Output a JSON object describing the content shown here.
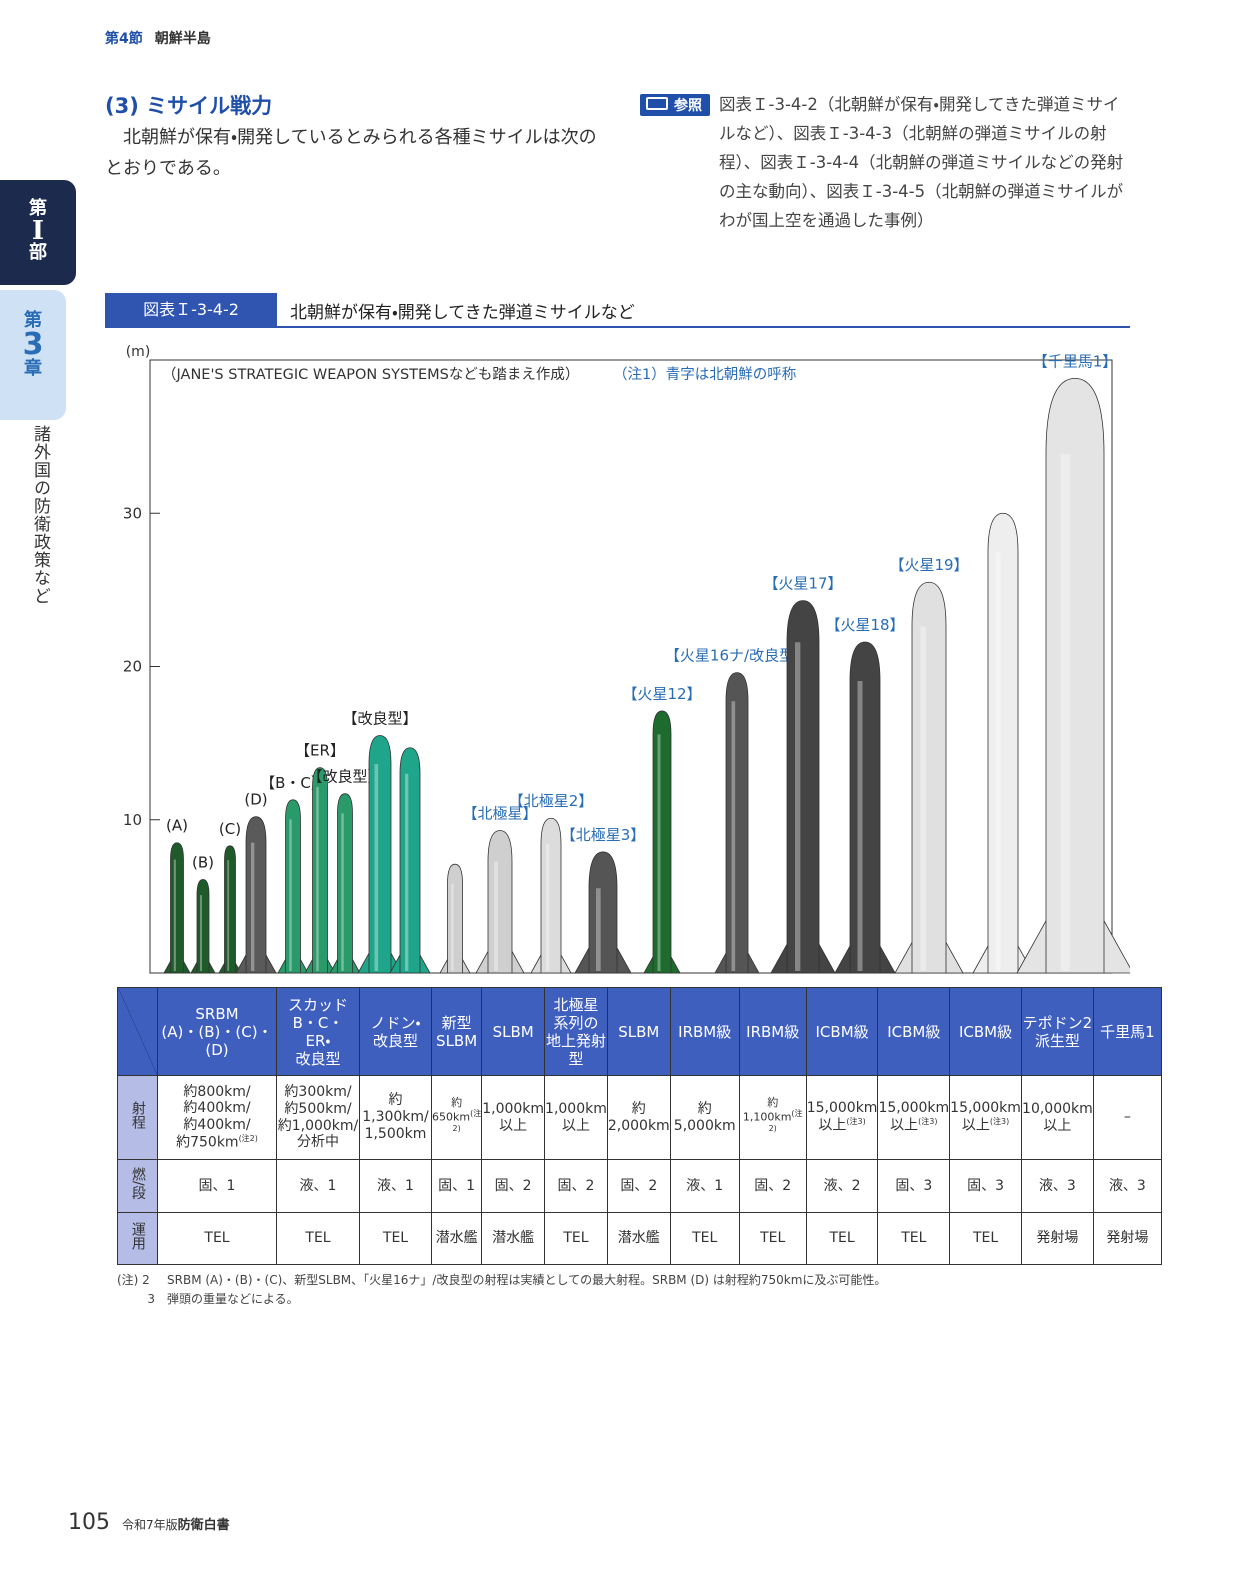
{
  "header": {
    "section": "第4節",
    "title": "朝鮮半島"
  },
  "sidebar": {
    "part": [
      "第",
      "I",
      "部"
    ],
    "chapter": [
      "第",
      "3",
      "章"
    ],
    "chapter_title": "諸外国の防衛政策など"
  },
  "section": {
    "title": "(3) ミサイル戦力",
    "body": "北朝鮮が保有・開発しているとみられる各種ミサイルは次のとおりである。"
  },
  "reference": {
    "label": "参照",
    "text": "図表Ｉ-3-4-2（北朝鮮が保有・開発してきた弾道ミサイルなど）、図表Ｉ-3-4-3（北朝鮮の弾道ミサイルの射程）、図表Ｉ-3-4-4（北朝鮮の弾道ミサイルなどの発射の主な動向）、図表Ｉ-3-4-5（北朝鮮の弾道ミサイルがわが国上空を通過した事例）"
  },
  "figure": {
    "number": "図表Ｉ-3-4-2",
    "title": "北朝鮮が保有・開発してきた弾道ミサイルなど"
  },
  "chart_data": {
    "type": "bar",
    "y_label": "(m)",
    "notes": [
      "（JANE'S STRATEGIC WEAPON SYSTEMSなども踏まえ作成）",
      "（注1）青字は北朝鮮の呼称"
    ],
    "categories": [
      "(A)",
      "(B)",
      "(C)",
      "(D)",
      "【B・C】",
      "【ER】",
      "【改良型】",
      "【改良型】",
      null,
      null,
      "【北極星】",
      "【北極星2】",
      "【北極星3】",
      "【火星12】",
      "【火星16ナ/改良型】",
      "【火星17】",
      "【火星18】",
      "【火星19】",
      null,
      "【千里馬1】"
    ],
    "label_colors": [
      "#222",
      "#222",
      "#222",
      "#222",
      "#222",
      "#222",
      "#222",
      "#222",
      null,
      null,
      "#2a6db5",
      "#2a6db5",
      "#2a6db5",
      "#2a6db5",
      "#2a6db5",
      "#2a6db5",
      "#2a6db5",
      "#2a6db5",
      null,
      "#2a6db5"
    ],
    "values": [
      8.5,
      6.1,
      8.3,
      10.2,
      11.3,
      13.4,
      11.7,
      15.5,
      14.7,
      7.1,
      9.3,
      10.1,
      7.9,
      17.1,
      19.6,
      24.3,
      21.6,
      25.5,
      30.0,
      38.8
    ],
    "colors": [
      "#1f5a2a",
      "#1f5a2a",
      "#1f5a2a",
      "#5a5a5a",
      "#2a9a6a",
      "#2a9a6a",
      "#2a9a6a",
      "#1fa58a",
      "#1fa58a",
      "#cfcfcf",
      "#cfcfcf",
      "#dcdcdc",
      "#555555",
      "#1e6b2e",
      "#555555",
      "#444444",
      "#444444",
      "#e0e0e0",
      "#eeeeee",
      "#e4e4e4"
    ],
    "ylim": [
      0,
      40
    ],
    "yticks": [
      10,
      20,
      30
    ]
  },
  "table": {
    "columns": [
      "SRBM\n(A)・(B)・(C)・\n(D)",
      "スカッド\nB・C・\nER・\n改良型",
      "ノドン・\n改良型",
      "新型\nSLBM",
      "SLBM",
      "北極星\n系列の\n地上発射型",
      "SLBM",
      "IRBM級",
      "IRBM級",
      "ICBM級",
      "ICBM級",
      "ICBM級",
      "テポドン2\n派生型",
      "千里馬1"
    ],
    "row_headers": [
      "射程",
      "燃/段",
      "運用"
    ],
    "rows": [
      [
        {
          "text": "約800km/\n約400km/\n約400km/\n約750km",
          "note": "(注2)"
        },
        "約300km/\n約500km/\n約1,000km/\n分析中",
        "約\n1,300km/\n1,500km",
        {
          "text": "約650km",
          "note": "(注2)"
        },
        "1,000km\n以上",
        "1,000km\n以上",
        "約2,000km",
        "約5,000km",
        {
          "text": "約1,100km",
          "note": "(注2)"
        },
        {
          "text": "15,000km\n以上",
          "note": "(注3)"
        },
        {
          "text": "15,000km\n以上",
          "note": "(注3)"
        },
        {
          "text": "15,000km\n以上",
          "note": "(注3)"
        },
        "10,000km\n以上",
        "–"
      ],
      [
        "固、1",
        "液、1",
        "液、1",
        "固、1",
        "固、2",
        "固、2",
        "固、2",
        "液、1",
        "固、2",
        "液、2",
        "固、3",
        "固、3",
        "液、3",
        "液、3"
      ],
      [
        "TEL",
        "TEL",
        "TEL",
        "潜水艦",
        "潜水艦",
        "TEL",
        "潜水艦",
        "TEL",
        "TEL",
        "TEL",
        "TEL",
        "TEL",
        "発射場",
        "発射場"
      ]
    ]
  },
  "footnotes": [
    {
      "mark": "(注) 2",
      "text": "SRBM (A)・(B)・(C)、新型SLBM、「火星16ナ」/改良型の射程は実績としての最大射程。SRBM (D) は射程約750kmに及ぶ可能性。"
    },
    {
      "mark": "3",
      "text": "弾頭の重量などによる。"
    }
  ],
  "footer": {
    "page": "105",
    "edition": "令和7年版",
    "title": "防衛白書"
  }
}
